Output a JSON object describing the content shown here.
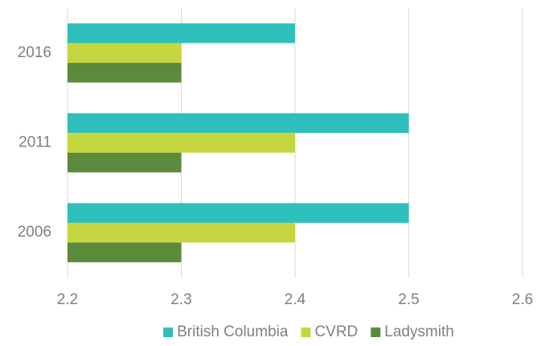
{
  "chart_data": {
    "type": "hbar",
    "categories": [
      "2016",
      "2011",
      "2006"
    ],
    "series": [
      {
        "name": "British Columbia",
        "color": "#2fbfbd",
        "values": [
          2.4,
          2.5,
          2.5
        ]
      },
      {
        "name": "CVRD",
        "color": "#c6d640",
        "values": [
          2.3,
          2.4,
          2.4
        ]
      },
      {
        "name": "Ladysmith",
        "color": "#5b8a3d",
        "values": [
          2.3,
          2.3,
          2.3
        ]
      }
    ],
    "xlim": [
      2.2,
      2.6
    ],
    "xticks": [
      2.2,
      2.3,
      2.4,
      2.5,
      2.6
    ],
    "grid": true,
    "legend": "bottom"
  }
}
